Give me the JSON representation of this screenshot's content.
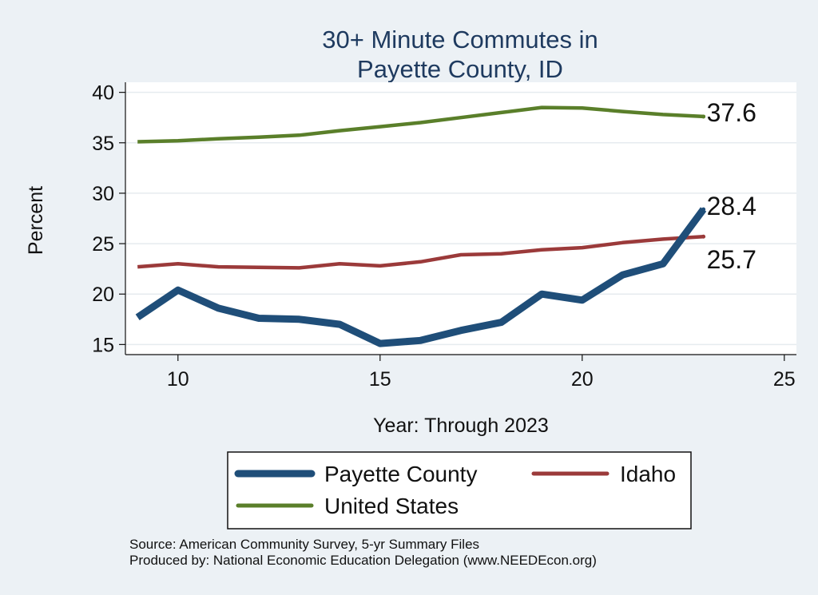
{
  "chart_data": {
    "type": "line",
    "title_lines": [
      "30+ Minute Commutes in",
      "Payette County, ID"
    ],
    "xlabel": "Year: Through 2023",
    "ylabel": "Percent",
    "xlim": [
      8.7,
      25.3
    ],
    "ylim": [
      14,
      41
    ],
    "x_ticks": [
      10,
      15,
      20,
      25
    ],
    "y_ticks": [
      15,
      20,
      25,
      30,
      35,
      40
    ],
    "grid": "horizontal",
    "legend_position": "bottom",
    "x": [
      9,
      10,
      11,
      12,
      13,
      14,
      15,
      16,
      17,
      18,
      19,
      20,
      21,
      22,
      23
    ],
    "series": [
      {
        "name": "Payette County",
        "color": "#1f4e79",
        "stroke": "thick",
        "values": [
          17.7,
          20.4,
          18.6,
          17.6,
          17.5,
          17.0,
          15.1,
          15.4,
          16.4,
          17.2,
          20.0,
          19.4,
          21.9,
          23.0,
          28.4
        ],
        "end_label": "28.4"
      },
      {
        "name": "Idaho",
        "color": "#9b3a3a",
        "stroke": "medium",
        "values": [
          22.7,
          23.0,
          22.7,
          22.65,
          22.6,
          23.0,
          22.8,
          23.2,
          23.9,
          24.0,
          24.4,
          24.6,
          25.1,
          25.45,
          25.7
        ],
        "end_label": "25.7"
      },
      {
        "name": "United States",
        "color": "#5a7f2a",
        "stroke": "medium",
        "values": [
          35.1,
          35.2,
          35.4,
          35.55,
          35.75,
          36.2,
          36.6,
          37.0,
          37.5,
          38.0,
          38.5,
          38.45,
          38.1,
          37.8,
          37.6
        ],
        "end_label": "37.6"
      }
    ],
    "notes": [
      "Source: American Community Survey, 5-yr Summary Files",
      "Produced by: National Economic Education Delegation (www.NEEDEcon.org)"
    ]
  }
}
